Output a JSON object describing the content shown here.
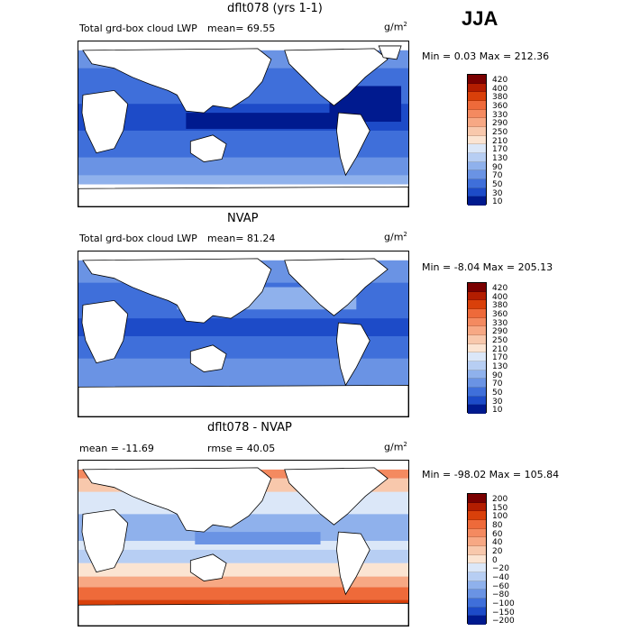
{
  "season": "JJA",
  "panels": [
    {
      "title": "dflt078 (yrs 1-1)",
      "left_label": "Total grd-box cloud LWP",
      "stat": "mean=  69.55",
      "units_base": "g/m",
      "units_exp": "2",
      "range": "Min =    0.03 Max = 212.36",
      "levels": [
        "420",
        "400",
        "380",
        "360",
        "330",
        "290",
        "250",
        "210",
        "170",
        "130",
        "90",
        "70",
        "50",
        "30",
        "10"
      ],
      "colors": [
        "#7a0000",
        "#b31d00",
        "#d9400a",
        "#ee6a3a",
        "#f48a60",
        "#f7a884",
        "#f8c8ac",
        "#fbe4d2",
        "#dbe7f8",
        "#b7cef3",
        "#8fb1ec",
        "#6a93e4",
        "#3f6fda",
        "#1d4bc8",
        "#001a8f"
      ]
    },
    {
      "title": "NVAP",
      "left_label": "Total grd-box cloud LWP",
      "stat": "mean=  81.24",
      "units_base": "g/m",
      "units_exp": "2",
      "range": "Min =  -8.04 Max = 205.13",
      "levels": [
        "420",
        "400",
        "380",
        "360",
        "330",
        "290",
        "250",
        "210",
        "170",
        "130",
        "90",
        "70",
        "50",
        "30",
        "10"
      ],
      "colors": [
        "#7a0000",
        "#b31d00",
        "#d9400a",
        "#ee6a3a",
        "#f48a60",
        "#f7a884",
        "#f8c8ac",
        "#fbe4d2",
        "#dbe7f8",
        "#b7cef3",
        "#8fb1ec",
        "#6a93e4",
        "#3f6fda",
        "#1d4bc8",
        "#001a8f"
      ]
    },
    {
      "title": "dflt078 - NVAP",
      "left_label": "mean = -11.69",
      "stat": "rmse =  40.05",
      "units_base": "g/m",
      "units_exp": "2",
      "range": "Min = -98.02 Max = 105.84",
      "levels": [
        "200",
        "150",
        "100",
        "80",
        "60",
        "40",
        "20",
        "0",
        "−20",
        "−40",
        "−60",
        "−80",
        "−100",
        "−150",
        "−200"
      ],
      "colors": [
        "#7a0000",
        "#b31d00",
        "#d9400a",
        "#ee6a3a",
        "#f48a60",
        "#f7a884",
        "#f8c8ac",
        "#fbe4d2",
        "#dbe7f8",
        "#b7cef3",
        "#8fb1ec",
        "#6a93e4",
        "#3f6fda",
        "#1d4bc8",
        "#001a8f"
      ]
    }
  ]
}
